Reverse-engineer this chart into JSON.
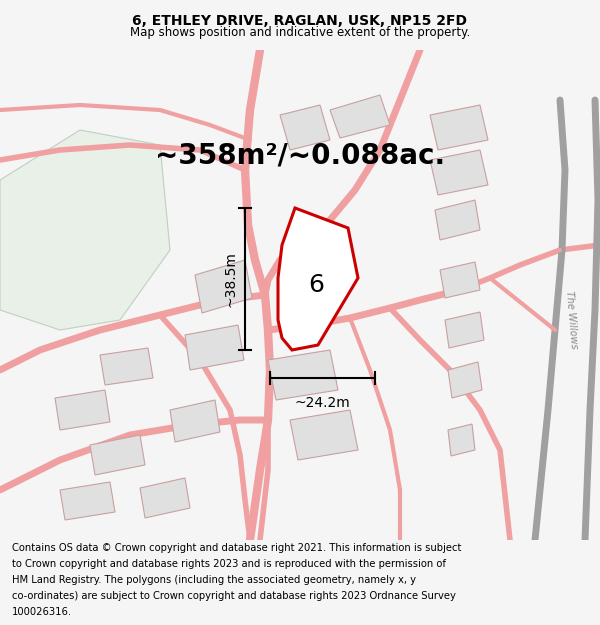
{
  "title_line1": "6, ETHLEY DRIVE, RAGLAN, USK, NP15 2FD",
  "title_line2": "Map shows position and indicative extent of the property.",
  "area_text": "~358m²/~0.088ac.",
  "dim_height": "~38.5m",
  "dim_width": "~24.2m",
  "plot_number": "6",
  "footer_text": "Contains OS data © Crown copyright and database right 2021. This information is subject to Crown copyright and database rights 2023 and is reproduced with the permission of HM Land Registry. The polygons (including the associated geometry, namely x, y co-ordinates) are subject to Crown copyright and database rights 2023 Ordnance Survey 100026316.",
  "bg_color": "#f5f5f5",
  "map_bg": "#ffffff",
  "plot_fill": "#ffffff",
  "plot_outline": "#cc0000",
  "road_color": "#f0a0a0",
  "road_fill": "#f8e8e8",
  "building_fill": "#e0e0e0",
  "building_outline": "#c8a0a0",
  "green_fill": "#e8f0e8",
  "green_outline": "#c0d0c0",
  "willow_color": "#a0a0a0",
  "title_fontsize": 10,
  "subtitle_fontsize": 8.5,
  "area_fontsize": 20,
  "footer_fontsize": 7.2,
  "dim_fontsize": 10,
  "number_fontsize": 18
}
